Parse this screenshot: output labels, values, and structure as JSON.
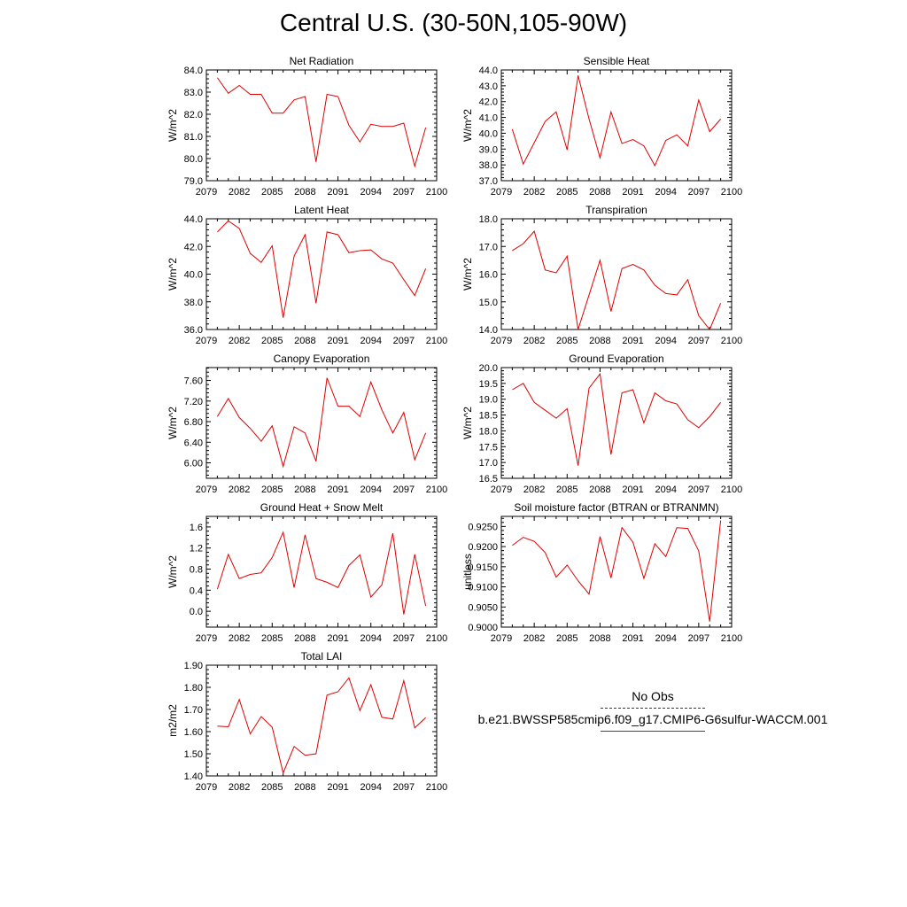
{
  "title": "Central U.S. (30-50N,105-90W)",
  "legend": {
    "obs_label": "No Obs",
    "obs_color": "#2b2b8a",
    "model_label": "b.e21.BWSSP585cmip6.f09_g17.CMIP6-G6sulfur-WACCM.001",
    "model_color": "#e00000"
  },
  "chart_data": [
    {
      "type": "line",
      "title": "Net Radiation",
      "ylabel": "W/m^2",
      "xlim": [
        2079,
        2100
      ],
      "ylim": [
        79.0,
        84.0
      ],
      "xticks": [
        2079,
        2082,
        2085,
        2088,
        2091,
        2094,
        2097,
        2100
      ],
      "yticks": [
        79.0,
        80.0,
        81.0,
        82.0,
        83.0,
        84.0
      ],
      "ydecimals": 1,
      "x": [
        2080,
        2081,
        2082,
        2083,
        2084,
        2085,
        2086,
        2087,
        2088,
        2089,
        2090,
        2091,
        2092,
        2093,
        2094,
        2095,
        2096,
        2097,
        2098,
        2099
      ],
      "series": [
        {
          "values": [
            83.65,
            82.95,
            83.3,
            82.9,
            82.9,
            82.05,
            82.05,
            82.65,
            82.8,
            79.85,
            82.9,
            82.8,
            81.5,
            80.75,
            81.55,
            81.45,
            81.45,
            81.6,
            79.65,
            81.4
          ]
        }
      ]
    },
    {
      "type": "line",
      "title": "Sensible Heat",
      "ylabel": "W/m^2",
      "xlim": [
        2079,
        2100
      ],
      "ylim": [
        37.0,
        44.0
      ],
      "xticks": [
        2079,
        2082,
        2085,
        2088,
        2091,
        2094,
        2097,
        2100
      ],
      "yticks": [
        37.0,
        38.0,
        39.0,
        40.0,
        41.0,
        42.0,
        43.0,
        44.0
      ],
      "ydecimals": 1,
      "x": [
        2080,
        2081,
        2082,
        2083,
        2084,
        2085,
        2086,
        2087,
        2088,
        2089,
        2090,
        2091,
        2092,
        2093,
        2094,
        2095,
        2096,
        2097,
        2098,
        2099
      ],
      "series": [
        {
          "values": [
            40.25,
            38.05,
            39.4,
            40.75,
            41.35,
            38.95,
            43.65,
            40.9,
            38.45,
            41.35,
            39.35,
            39.6,
            39.2,
            37.95,
            39.55,
            39.9,
            39.2,
            42.1,
            40.1,
            40.9
          ]
        }
      ]
    },
    {
      "type": "line",
      "title": "Latent Heat",
      "ylabel": "W/m^2",
      "xlim": [
        2079,
        2100
      ],
      "ylim": [
        36.0,
        44.0
      ],
      "xticks": [
        2079,
        2082,
        2085,
        2088,
        2091,
        2094,
        2097,
        2100
      ],
      "yticks": [
        36.0,
        38.0,
        40.0,
        42.0,
        44.0
      ],
      "ydecimals": 1,
      "x": [
        2080,
        2081,
        2082,
        2083,
        2084,
        2085,
        2086,
        2087,
        2088,
        2089,
        2090,
        2091,
        2092,
        2093,
        2094,
        2095,
        2096,
        2097,
        2098,
        2099
      ],
      "series": [
        {
          "values": [
            43.05,
            43.85,
            43.3,
            41.5,
            40.85,
            42.05,
            36.85,
            41.3,
            42.85,
            37.9,
            43.05,
            42.85,
            41.55,
            41.7,
            41.75,
            41.1,
            40.8,
            39.6,
            38.45,
            40.4
          ]
        }
      ]
    },
    {
      "type": "line",
      "title": "Transpiration",
      "ylabel": "W/m^2",
      "xlim": [
        2079,
        2100
      ],
      "ylim": [
        14.0,
        18.0
      ],
      "xticks": [
        2079,
        2082,
        2085,
        2088,
        2091,
        2094,
        2097,
        2100
      ],
      "yticks": [
        14.0,
        15.0,
        16.0,
        17.0,
        18.0
      ],
      "ydecimals": 1,
      "x": [
        2080,
        2081,
        2082,
        2083,
        2084,
        2085,
        2086,
        2087,
        2088,
        2089,
        2090,
        2091,
        2092,
        2093,
        2094,
        2095,
        2096,
        2097,
        2098,
        2099
      ],
      "series": [
        {
          "values": [
            16.85,
            17.1,
            17.55,
            16.15,
            16.05,
            16.65,
            14.0,
            15.25,
            16.5,
            14.65,
            16.2,
            16.35,
            16.15,
            15.6,
            15.3,
            15.25,
            15.8,
            14.5,
            14.0,
            14.95
          ]
        }
      ]
    },
    {
      "type": "line",
      "title": "Canopy Evaporation",
      "ylabel": "W/m^2",
      "xlim": [
        2079,
        2100
      ],
      "ylim": [
        5.7,
        7.85
      ],
      "xticks": [
        2079,
        2082,
        2085,
        2088,
        2091,
        2094,
        2097,
        2100
      ],
      "yticks": [
        6.0,
        6.4,
        6.8,
        7.2,
        7.6
      ],
      "ydecimals": 2,
      "x": [
        2080,
        2081,
        2082,
        2083,
        2084,
        2085,
        2086,
        2087,
        2088,
        2089,
        2090,
        2091,
        2092,
        2093,
        2094,
        2095,
        2096,
        2097,
        2098,
        2099
      ],
      "series": [
        {
          "values": [
            6.9,
            7.25,
            6.88,
            6.67,
            6.42,
            6.72,
            5.93,
            6.7,
            6.58,
            6.03,
            7.65,
            7.1,
            7.1,
            6.9,
            7.57,
            7.03,
            6.58,
            6.98,
            6.06,
            6.58
          ]
        }
      ]
    },
    {
      "type": "line",
      "title": "Ground Evaporation",
      "ylabel": "W/m^2",
      "xlim": [
        2079,
        2100
      ],
      "ylim": [
        16.5,
        20.0
      ],
      "xticks": [
        2079,
        2082,
        2085,
        2088,
        2091,
        2094,
        2097,
        2100
      ],
      "yticks": [
        16.5,
        17.0,
        17.5,
        18.0,
        18.5,
        19.0,
        19.5,
        20.0
      ],
      "ydecimals": 1,
      "x": [
        2080,
        2081,
        2082,
        2083,
        2084,
        2085,
        2086,
        2087,
        2088,
        2089,
        2090,
        2091,
        2092,
        2093,
        2094,
        2095,
        2096,
        2097,
        2098,
        2099
      ],
      "series": [
        {
          "values": [
            19.3,
            19.5,
            18.9,
            18.65,
            18.4,
            18.7,
            16.9,
            19.35,
            19.8,
            17.25,
            19.2,
            19.3,
            18.25,
            19.2,
            18.95,
            18.85,
            18.35,
            18.1,
            18.45,
            18.9
          ]
        }
      ]
    },
    {
      "type": "line",
      "title": "Ground Heat + Snow Melt",
      "ylabel": "W/m^2",
      "xlim": [
        2079,
        2100
      ],
      "ylim": [
        -0.3,
        1.8
      ],
      "xticks": [
        2079,
        2082,
        2085,
        2088,
        2091,
        2094,
        2097,
        2100
      ],
      "yticks": [
        0.0,
        0.4,
        0.8,
        1.2,
        1.6
      ],
      "ydecimals": 1,
      "x": [
        2080,
        2081,
        2082,
        2083,
        2084,
        2085,
        2086,
        2087,
        2088,
        2089,
        2090,
        2091,
        2092,
        2093,
        2094,
        2095,
        2096,
        2097,
        2098,
        2099
      ],
      "series": [
        {
          "values": [
            0.42,
            1.08,
            0.62,
            0.7,
            0.73,
            1.02,
            1.5,
            0.45,
            1.45,
            0.62,
            0.55,
            0.45,
            0.87,
            1.07,
            0.27,
            0.5,
            1.48,
            -0.06,
            1.08,
            0.1
          ]
        }
      ]
    },
    {
      "type": "line",
      "title": "Soil moisture factor (BTRAN or BTRANMN)",
      "ylabel": "unitless",
      "xlim": [
        2079,
        2100
      ],
      "ylim": [
        0.9,
        0.9275
      ],
      "xticks": [
        2079,
        2082,
        2085,
        2088,
        2091,
        2094,
        2097,
        2100
      ],
      "yticks": [
        0.9,
        0.905,
        0.91,
        0.915,
        0.92,
        0.925
      ],
      "ydecimals": 4,
      "x": [
        2080,
        2081,
        2082,
        2083,
        2084,
        2085,
        2086,
        2087,
        2088,
        2089,
        2090,
        2091,
        2092,
        2093,
        2094,
        2095,
        2096,
        2097,
        2098,
        2099
      ],
      "series": [
        {
          "values": [
            0.9203,
            0.9223,
            0.9213,
            0.9185,
            0.9124,
            0.9154,
            0.9115,
            0.9082,
            0.9225,
            0.9122,
            0.9247,
            0.9211,
            0.9121,
            0.9207,
            0.9175,
            0.9247,
            0.9245,
            0.9189,
            0.9014,
            0.9265
          ]
        }
      ]
    },
    {
      "type": "line",
      "title": "Total LAI",
      "ylabel": "m2/m2",
      "xlim": [
        2079,
        2100
      ],
      "ylim": [
        1.4,
        1.9
      ],
      "xticks": [
        2079,
        2082,
        2085,
        2088,
        2091,
        2094,
        2097,
        2100
      ],
      "yticks": [
        1.4,
        1.5,
        1.6,
        1.7,
        1.8,
        1.9
      ],
      "ydecimals": 2,
      "x": [
        2080,
        2081,
        2082,
        2083,
        2084,
        2085,
        2086,
        2087,
        2088,
        2089,
        2090,
        2091,
        2092,
        2093,
        2094,
        2095,
        2096,
        2097,
        2098,
        2099
      ],
      "series": [
        {
          "values": [
            1.625,
            1.622,
            1.745,
            1.59,
            1.668,
            1.62,
            1.413,
            1.533,
            1.493,
            1.5,
            1.765,
            1.78,
            1.843,
            1.695,
            1.812,
            1.665,
            1.657,
            1.83,
            1.617,
            1.663
          ]
        }
      ]
    }
  ]
}
